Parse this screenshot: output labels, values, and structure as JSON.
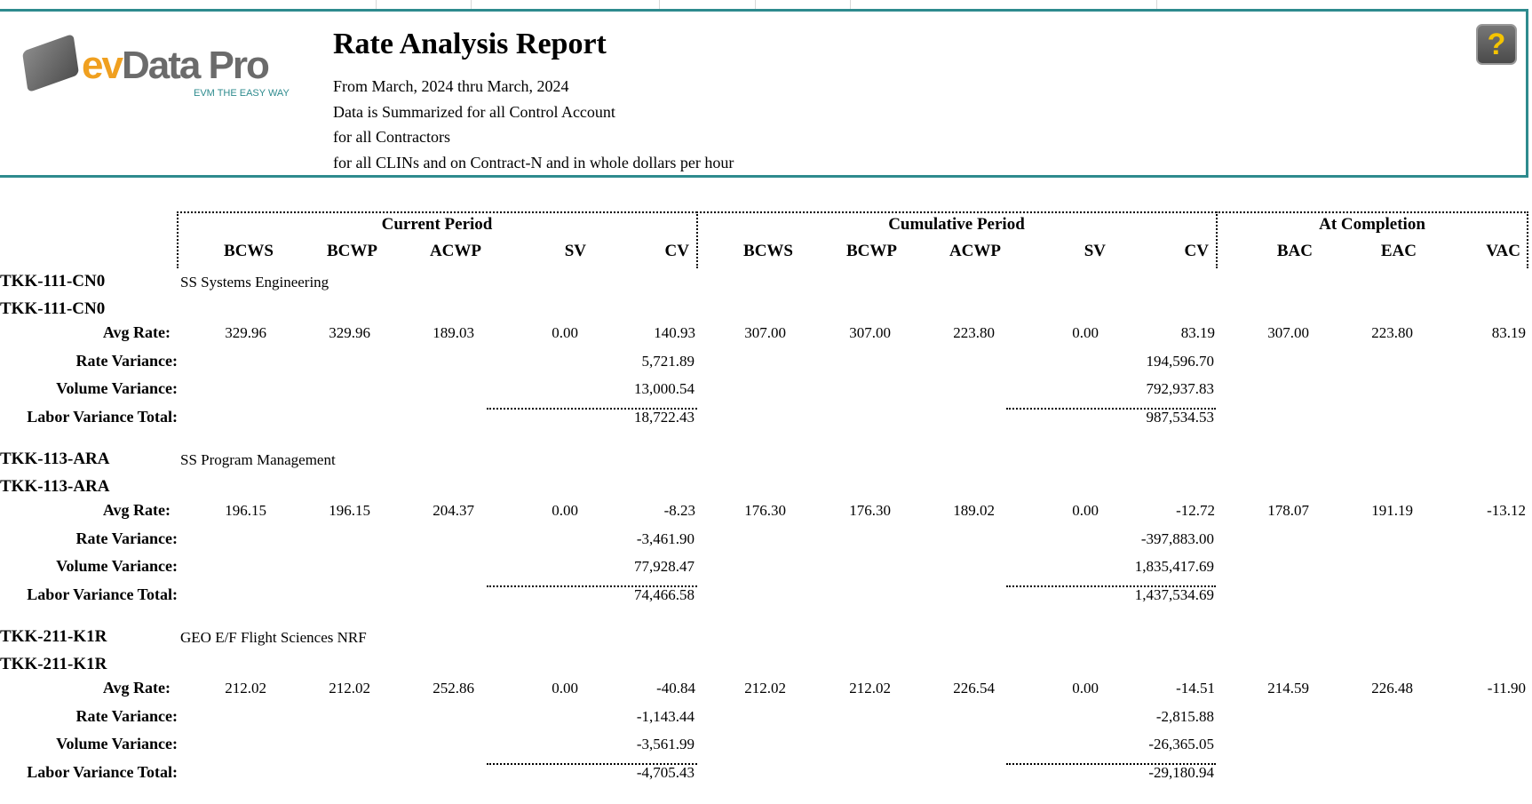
{
  "app": {
    "logo_text_ev": "ev",
    "logo_text_dp": "Data Pro",
    "logo_tagline": "EVM THE EASY WAY",
    "help_label": "?"
  },
  "report": {
    "title": "Rate Analysis Report",
    "lines": [
      "From March, 2024 thru March, 2024",
      "Data is Summarized for all Control Account",
      "for all Contractors",
      "for all CLINs and on Contract-N and in whole dollars per hour"
    ]
  },
  "groups": [
    "Current Period",
    "Cumulative Period",
    "At Completion"
  ],
  "columns": [
    "BCWS",
    "BCWP",
    "ACWP",
    "SV",
    "CV",
    "BCWS",
    "BCWP",
    "ACWP",
    "SV",
    "CV",
    "BAC",
    "EAC",
    "VAC"
  ],
  "row_labels": {
    "avg": "Avg Rate:",
    "rate": "Rate Variance:",
    "volume": "Volume Variance:",
    "total": "Labor Variance Total:"
  },
  "accounts": [
    {
      "code": "TKK-111-CN0",
      "sub_code": "TKK-111-CN0",
      "description": "SS Systems Engineering",
      "avg_rate": [
        "329.96",
        "329.96",
        "189.03",
        "0.00",
        "140.93",
        "307.00",
        "307.00",
        "223.80",
        "0.00",
        "83.19",
        "307.00",
        "223.80",
        "83.19"
      ],
      "rate_variance": [
        "5,721.89",
        "194,596.70"
      ],
      "volume_variance": [
        "13,000.54",
        "792,937.83"
      ],
      "labor_total": [
        "18,722.43",
        "987,534.53"
      ]
    },
    {
      "code": "TKK-113-ARA",
      "sub_code": "TKK-113-ARA",
      "description": "SS Program Management",
      "avg_rate": [
        "196.15",
        "196.15",
        "204.37",
        "0.00",
        "-8.23",
        "176.30",
        "176.30",
        "189.02",
        "0.00",
        "-12.72",
        "178.07",
        "191.19",
        "-13.12"
      ],
      "rate_variance": [
        "-3,461.90",
        "-397,883.00"
      ],
      "volume_variance": [
        "77,928.47",
        "1,835,417.69"
      ],
      "labor_total": [
        "74,466.58",
        "1,437,534.69"
      ]
    },
    {
      "code": "TKK-211-K1R",
      "sub_code": "TKK-211-K1R",
      "description": "GEO E/F Flight Sciences NRF",
      "avg_rate": [
        "212.02",
        "212.02",
        "252.86",
        "0.00",
        "-40.84",
        "212.02",
        "212.02",
        "226.54",
        "0.00",
        "-14.51",
        "214.59",
        "226.48",
        "-11.90"
      ],
      "rate_variance": [
        "-1,143.44",
        "-2,815.88"
      ],
      "volume_variance": [
        "-3,561.99",
        "-26,365.05"
      ],
      "labor_total": [
        "-4,705.43",
        "-29,180.94"
      ]
    }
  ]
}
